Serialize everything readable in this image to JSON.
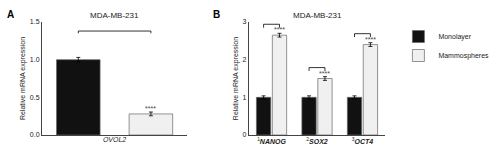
{
  "chart_data": [
    {
      "type": "bar",
      "title": "MDA-MB-231",
      "xlabel": "OVOL2",
      "ylabel": "Relative mRNA expression",
      "panel_label": "A",
      "categories": [
        null,
        null
      ],
      "values": [
        1.0,
        0.28
      ],
      "errors": [
        0.03,
        0.025
      ],
      "colors": [
        "#111111",
        "#f0f0f0"
      ],
      "ylim": [
        0,
        1.5
      ],
      "yticks": [
        {
          "value": 0,
          "label": "0.0"
        },
        0.5,
        {
          "value": 1,
          "label": "1.0"
        },
        1.5
      ],
      "grid": false,
      "tick_labels": "y",
      "annotations": [
        {
          "text": "****",
          "x": 1
        }
      ]
    },
    {
      "type": "bar",
      "title": "MDA-MB-231",
      "ylabel": "Relative mRNA expression",
      "panel_label": "B",
      "categories": [
        "NANOG",
        "SOX2",
        "OCT4"
      ],
      "category_superscripts": [
        "1",
        "2",
        "3"
      ],
      "series": [
        {
          "name": "Monolayer",
          "color": "#111111",
          "values": [
            1.0,
            1.0,
            1.0
          ],
          "errors": [
            0.04,
            0.04,
            0.04
          ]
        },
        {
          "name": "Mammospheres",
          "color": "#f0f0f0",
          "values": [
            2.65,
            1.5,
            2.4
          ],
          "errors": [
            0.05,
            0.05,
            0.05
          ]
        }
      ],
      "ylim": [
        0,
        3.0
      ],
      "yticks": [
        0,
        1,
        2,
        3
      ],
      "grid": false,
      "legend": "right",
      "annotations": [
        {
          "text": "****",
          "x": 0,
          "series": "Mammospheres"
        },
        {
          "text": "****",
          "x": 1,
          "series": "Mammospheres"
        },
        {
          "text": "****",
          "x": 2,
          "series": "Mammospheres"
        }
      ]
    }
  ]
}
